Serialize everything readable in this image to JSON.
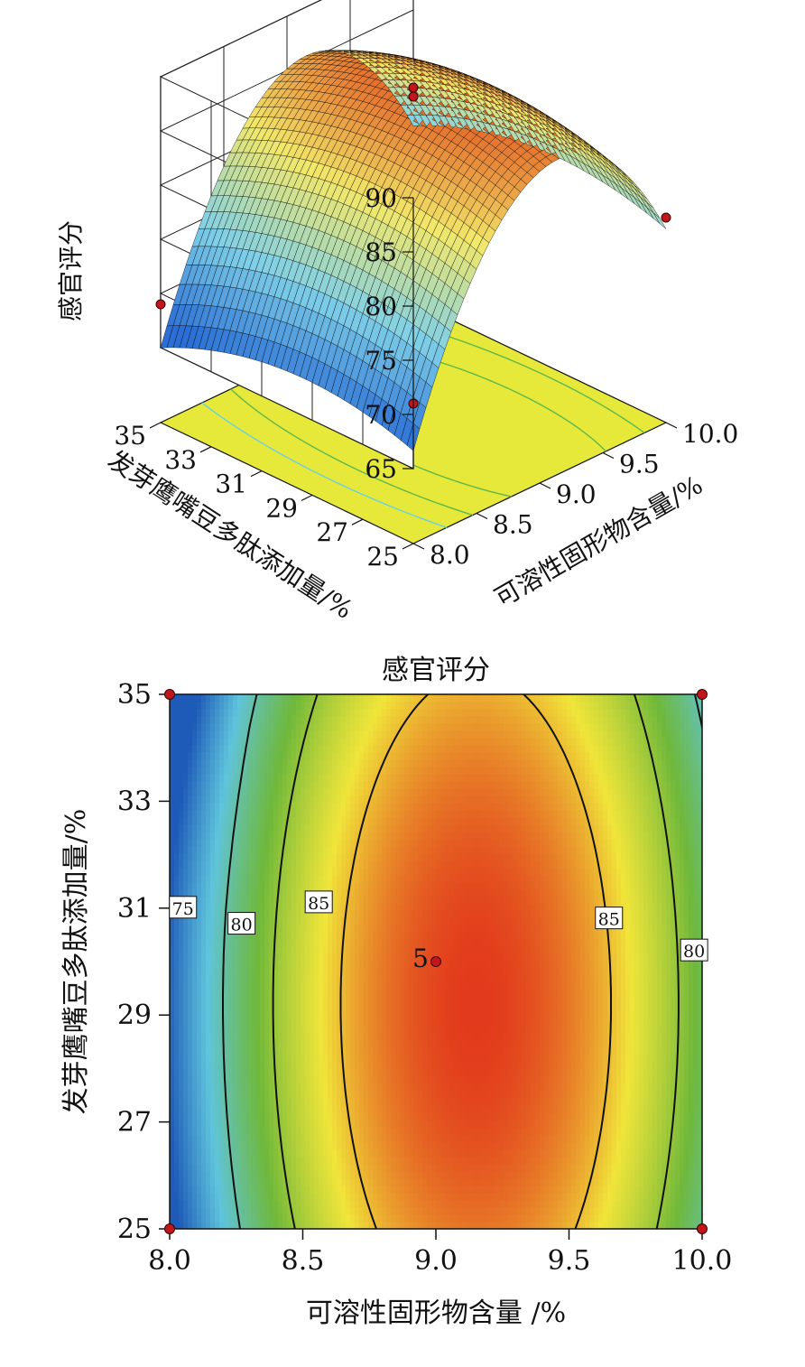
{
  "chart_data": [
    {
      "type": "surface3d",
      "zlabel": "感官评分",
      "xlabel": "可溶性固形物含量/%",
      "ylabel": "发芽鹰嘴豆多肽添加量/%",
      "x_ticks": [
        "8.0",
        "8.5",
        "9.0",
        "9.5",
        "10.0"
      ],
      "y_ticks": [
        "25",
        "27",
        "29",
        "31",
        "33",
        "35"
      ],
      "z_ticks": [
        "65",
        "70",
        "75",
        "80",
        "85",
        "90"
      ],
      "xlim": [
        8.0,
        10.0
      ],
      "ylim": [
        25,
        35
      ],
      "zlim": [
        65,
        90
      ],
      "grid": true,
      "colormap": [
        "#2b6fd6",
        "#7fd0e8",
        "#f2e86a",
        "#e04a1a"
      ],
      "floor_color": "#e6e83a",
      "design_points": [
        {
          "x": 8.0,
          "y": 35,
          "z": 69
        },
        {
          "x": 8.0,
          "y": 25,
          "z": 71
        },
        {
          "x": 10.0,
          "y": 35,
          "z": 77
        },
        {
          "x": 10.0,
          "y": 25,
          "z": 77
        },
        {
          "x": 9.0,
          "y": 30,
          "z": 89
        }
      ]
    },
    {
      "type": "contour",
      "title": "感官评分",
      "xlabel": "可溶性固形物含量 /%",
      "ylabel": "发芽鹰嘴豆多肽添加量/%",
      "x_ticks": [
        "8.0",
        "8.5",
        "9.0",
        "9.5",
        "10.0"
      ],
      "y_ticks": [
        "25",
        "27",
        "29",
        "31",
        "33",
        "35"
      ],
      "xlim": [
        8.0,
        10.0
      ],
      "ylim": [
        25,
        35
      ],
      "levels": [
        75,
        80,
        85
      ],
      "contour_labels": [
        {
          "text": "75",
          "x": 8.05,
          "y": 31.0
        },
        {
          "text": "80",
          "x": 8.27,
          "y": 30.7
        },
        {
          "text": "85",
          "x": 8.56,
          "y": 31.1
        },
        {
          "text": "85",
          "x": 9.65,
          "y": 30.8
        },
        {
          "text": "80",
          "x": 9.97,
          "y": 30.2
        }
      ],
      "center_point": {
        "label": "5",
        "x": 9.0,
        "y": 30.0
      },
      "design_points": [
        {
          "x": 8.0,
          "y": 35
        },
        {
          "x": 10.0,
          "y": 35
        },
        {
          "x": 8.0,
          "y": 25
        },
        {
          "x": 10.0,
          "y": 25
        }
      ],
      "colors": {
        "low": "#1e5bb8",
        "mid_low": "#5fc4dc",
        "mid": "#6fb83a",
        "mid_high": "#f0e53a",
        "high": "#e23a1c",
        "point": "#c0161c"
      }
    }
  ]
}
